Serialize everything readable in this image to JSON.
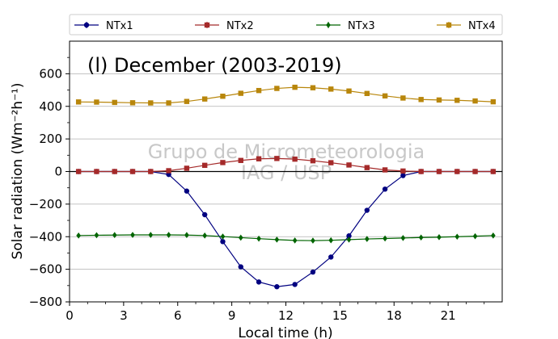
{
  "chart_data": {
    "type": "line",
    "title": "(l) December (2003-2019)",
    "xlabel": "Local time (h)",
    "ylabel": "Solar radiation (Wm⁻²h⁻¹)",
    "watermark": [
      "Grupo de Micrometeorologia",
      "IAG / USP"
    ],
    "xlim": [
      0,
      24
    ],
    "ylim": [
      -800,
      800
    ],
    "xticks": [
      0,
      3,
      6,
      9,
      12,
      15,
      18,
      21
    ],
    "xtick_labels": [
      "0",
      "3",
      "6",
      "9",
      "12",
      "15",
      "18",
      "21"
    ],
    "yticks": [
      -800,
      -600,
      -400,
      -200,
      0,
      200,
      400,
      600
    ],
    "ytick_labels": [
      "−800",
      "−600",
      "−400",
      "−200",
      "0",
      "200",
      "400",
      "600"
    ],
    "grid": "horizontal",
    "legend_position": "top",
    "x": [
      0.5,
      1.5,
      2.5,
      3.5,
      4.5,
      5.5,
      6.5,
      7.5,
      8.5,
      9.5,
      10.5,
      11.5,
      12.5,
      13.5,
      14.5,
      15.5,
      16.5,
      17.5,
      18.5,
      19.5,
      20.5,
      21.5,
      22.5,
      23.5
    ],
    "series": [
      {
        "name": "NTx1",
        "color": "#000080",
        "marker": "circle",
        "values": [
          0,
          0,
          0,
          0,
          0,
          -18,
          -120,
          -265,
          -430,
          -585,
          -678,
          -707,
          -693,
          -617,
          -525,
          -395,
          -238,
          -108,
          -25,
          0,
          0,
          0,
          0,
          0
        ]
      },
      {
        "name": "NTx2",
        "color": "#a52a2a",
        "marker": "square",
        "values": [
          0,
          0,
          0,
          0,
          0,
          5,
          20,
          38,
          55,
          68,
          78,
          80,
          76,
          66,
          54,
          40,
          24,
          10,
          3,
          0,
          0,
          0,
          0,
          0
        ]
      },
      {
        "name": "NTx3",
        "color": "#006400",
        "marker": "diamond",
        "values": [
          -393,
          -391,
          -390,
          -389,
          -389,
          -389,
          -390,
          -393,
          -399,
          -406,
          -412,
          -418,
          -423,
          -424,
          -422,
          -418,
          -414,
          -411,
          -408,
          -405,
          -403,
          -400,
          -397,
          -393
        ]
      },
      {
        "name": "NTx4",
        "color": "#b8860b",
        "marker": "square",
        "values": [
          427,
          426,
          424,
          422,
          421,
          421,
          430,
          445,
          462,
          480,
          497,
          510,
          517,
          514,
          506,
          494,
          479,
          464,
          451,
          442,
          439,
          437,
          433,
          428
        ]
      }
    ]
  }
}
